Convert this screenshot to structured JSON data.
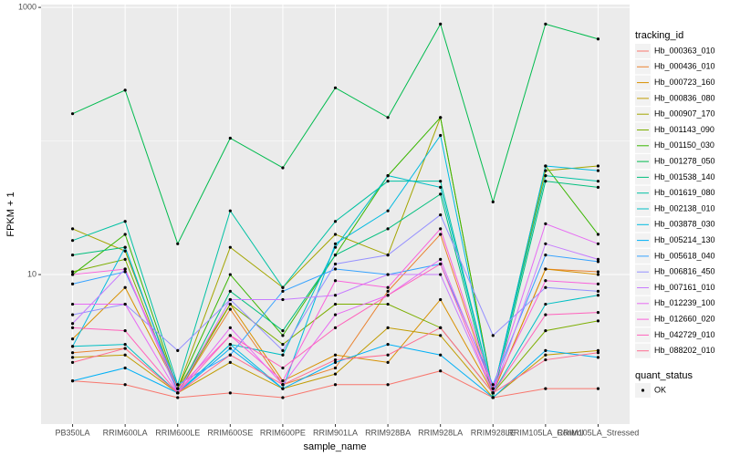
{
  "chart_data": {
    "type": "line",
    "x_label": "sample_name",
    "y_label": "FPKM + 1",
    "log_y": true,
    "grid": true,
    "legend_title": "tracking_id",
    "legend_position": "right",
    "shape_legend_title": "quant_status",
    "shape_legend_items": [
      "OK"
    ],
    "categories": [
      "PB350LA",
      "RRIM600LA",
      "RRIM600LE",
      "RRIM600SE",
      "RRIM600PE",
      "RRIM901LA",
      "RRIM928BA",
      "RRIM928LA",
      "RRIM928LE",
      "RRIM105LA_Control",
      "RRIM105LA_Stressed"
    ],
    "ylim": [
      0.76,
      1050
    ],
    "yticks": [
      10,
      1000
    ],
    "y_minor_ticks": [
      100
    ],
    "series": [
      {
        "name": "Hb_000363_010",
        "color": "#F8766D",
        "values": [
          1.6,
          1.5,
          1.2,
          1.3,
          1.2,
          1.5,
          1.5,
          1.9,
          1.2,
          1.4,
          1.4
        ]
      },
      {
        "name": "Hb_000436_010",
        "color": "#EA8331",
        "values": [
          2.6,
          2.8,
          1.3,
          5.5,
          1.5,
          2.0,
          7.5,
          20,
          1.3,
          11,
          10.5
        ]
      },
      {
        "name": "Hb_000723_160",
        "color": "#D89000",
        "values": [
          3.3,
          8,
          1.4,
          6,
          1.6,
          2.5,
          2.2,
          6.5,
          1.3,
          11,
          10
        ]
      },
      {
        "name": "Hb_000836_080",
        "color": "#C09B00",
        "values": [
          2.4,
          2.5,
          1.3,
          2.2,
          1.4,
          1.8,
          4,
          3.5,
          1.2,
          2.5,
          2.7
        ]
      },
      {
        "name": "Hb_000907_170",
        "color": "#A3A500",
        "values": [
          22,
          15,
          1.4,
          16,
          8,
          20,
          14,
          150,
          1.3,
          60,
          65
        ]
      },
      {
        "name": "Hb_001143_090",
        "color": "#7CAE00",
        "values": [
          10.5,
          13,
          1.3,
          6,
          3,
          6,
          6,
          4,
          1.3,
          3.8,
          4.5
        ]
      },
      {
        "name": "Hb_001150_030",
        "color": "#39B600",
        "values": [
          10,
          20,
          1.4,
          10,
          3.5,
          14,
          55,
          150,
          1.3,
          65,
          20
        ]
      },
      {
        "name": "Hb_001278_050",
        "color": "#00BB4E",
        "values": [
          160,
          240,
          17,
          105,
          63,
          250,
          150,
          750,
          35,
          750,
          580
        ]
      },
      {
        "name": "Hb_001538_140",
        "color": "#00BF7D",
        "values": [
          14,
          16,
          1.3,
          7.5,
          3.8,
          14,
          22,
          40,
          1.2,
          50,
          45
        ]
      },
      {
        "name": "Hb_001619_080",
        "color": "#00C1A3",
        "values": [
          18,
          25,
          1.5,
          30,
          8,
          25,
          50,
          50,
          1.3,
          55,
          50
        ]
      },
      {
        "name": "Hb_002138_010",
        "color": "#00BFC4",
        "values": [
          2.9,
          3,
          1.3,
          3,
          2.5,
          16,
          55,
          45,
          1.3,
          6,
          7
        ]
      },
      {
        "name": "Hb_003878_030",
        "color": "#00BAE0",
        "values": [
          2.9,
          16,
          1.3,
          3,
          1.4,
          17,
          30,
          110,
          1.3,
          65,
          60
        ]
      },
      {
        "name": "Hb_005214_130",
        "color": "#00B0F6",
        "values": [
          1.6,
          2.0,
          1.3,
          2.8,
          1.4,
          2.2,
          3,
          2.5,
          1.2,
          2.7,
          2.4
        ]
      },
      {
        "name": "Hb_005618_040",
        "color": "#35A2FF",
        "values": [
          8.5,
          10.5,
          1.5,
          2.5,
          7.5,
          11,
          10,
          12,
          1.5,
          14,
          12.5
        ]
      },
      {
        "name": "Hb_006816_450",
        "color": "#9590FF",
        "values": [
          5,
          6,
          2.7,
          6.5,
          2.7,
          12,
          14,
          28,
          3.5,
          8,
          7.5
        ]
      },
      {
        "name": "Hb_007161_010",
        "color": "#C77CFF",
        "values": [
          4.3,
          11,
          1.3,
          6.5,
          6.5,
          7,
          10,
          10,
          1.3,
          17,
          13
        ]
      },
      {
        "name": "Hb_012239_100",
        "color": "#E76BF3",
        "values": [
          6,
          6,
          1.3,
          4,
          1.5,
          5,
          7,
          13,
          1.4,
          24,
          17
        ]
      },
      {
        "name": "Hb_012660_020",
        "color": "#FA62DB",
        "values": [
          10,
          11,
          1.4,
          3.5,
          1.6,
          9,
          8,
          22,
          1.4,
          9,
          8.5
        ]
      },
      {
        "name": "Hb_042729_010",
        "color": "#FF62BC",
        "values": [
          4,
          3.8,
          1.3,
          3.5,
          2,
          4,
          7,
          12,
          1.3,
          5,
          5.2
        ]
      },
      {
        "name": "Hb_088202_010",
        "color": "#FF6C91",
        "values": [
          2.2,
          2.8,
          1.3,
          2.5,
          1.5,
          2.3,
          2.5,
          4,
          1.3,
          2.3,
          2.6
        ]
      }
    ]
  }
}
